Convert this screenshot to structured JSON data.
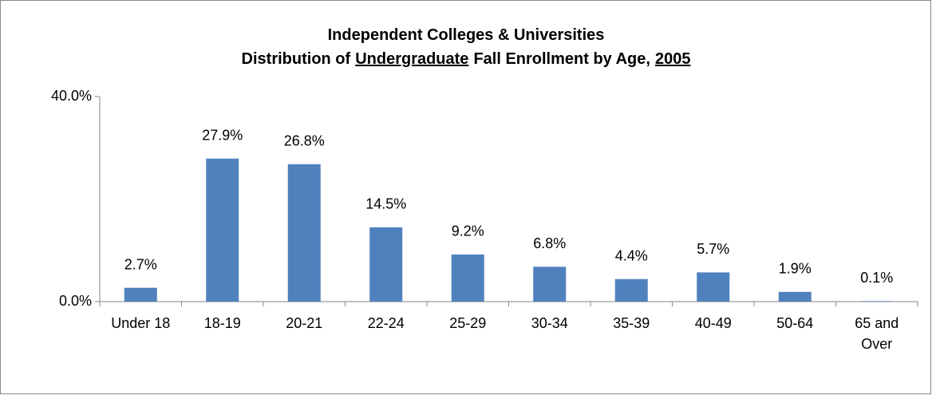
{
  "chart_data": {
    "type": "bar",
    "title_lines": [
      [
        {
          "text": "Independent Colleges & Universities"
        }
      ],
      [
        {
          "text": "Distribution of"
        },
        {
          "text": "Undergraduate",
          "underline": true
        },
        {
          "text": "Fall Enrollment by Age,"
        },
        {
          "text": "2005",
          "underline": true
        }
      ]
    ],
    "categories": [
      "Under 18",
      "18-19",
      "20-21",
      "22-24",
      "25-29",
      "30-34",
      "35-39",
      "40-49",
      "50-64",
      "65 and Over"
    ],
    "values": [
      2.7,
      27.9,
      26.8,
      14.5,
      9.2,
      6.8,
      4.4,
      5.7,
      1.9,
      0.1
    ],
    "value_labels": [
      "2.7%",
      "27.9%",
      "26.8%",
      "14.5%",
      "9.2%",
      "6.8%",
      "4.4%",
      "5.7%",
      "1.9%",
      "0.1%"
    ],
    "color": "#4f81bd",
    "ylim": [
      0,
      40
    ],
    "yticks": [
      {
        "value": 0,
        "label": "0.0%"
      },
      {
        "value": 40,
        "label": "40.0%"
      }
    ],
    "grid": false
  }
}
